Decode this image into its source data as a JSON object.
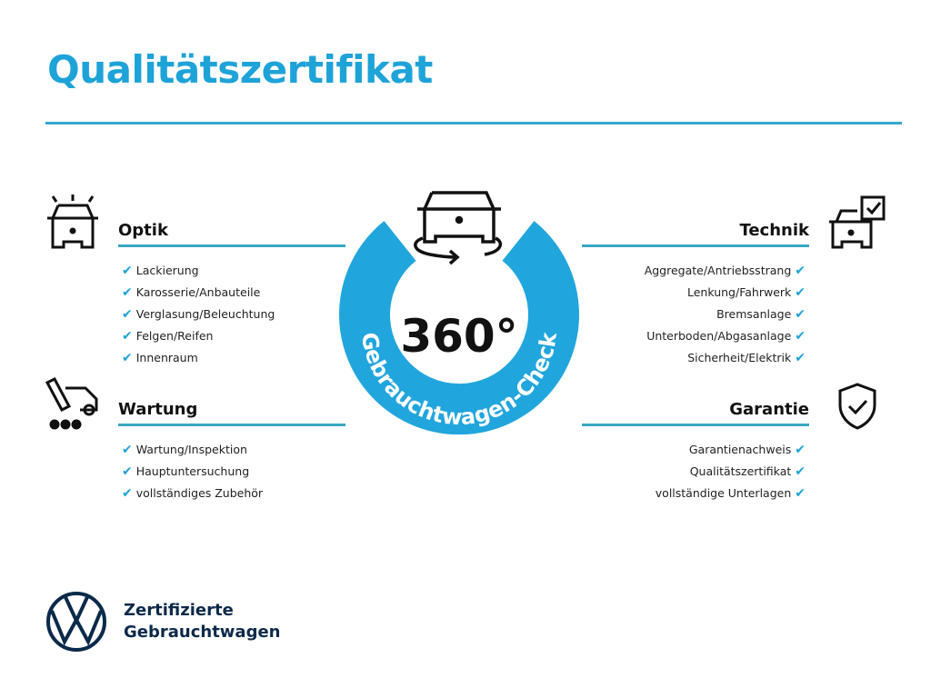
{
  "title": "Qualitätszertifikat",
  "center": {
    "number": "360°",
    "label": "Gebrauchtwagen-Check"
  },
  "sections": {
    "optik": {
      "heading": "Optik",
      "items": [
        "Lackierung",
        "Karosserie/Anbauteile",
        "Verglasung/Beleuchtung",
        "Felgen/Reifen",
        "Innenraum"
      ]
    },
    "wartung": {
      "heading": "Wartung",
      "items": [
        "Wartung/Inspektion",
        "Hauptuntersuchung",
        "vollständiges Zubehör"
      ]
    },
    "technik": {
      "heading": "Technik",
      "items": [
        "Aggregate/Antriebsstrang",
        "Lenkung/Fahrwerk",
        "Bremsanlage",
        "Unterboden/Abgasanlage",
        "Sicherheit/Elektrik"
      ]
    },
    "garantie": {
      "heading": "Garantie",
      "items": [
        "Garantienachweis",
        "Qualitätszertifikat",
        "vollständige Unterlagen"
      ]
    }
  },
  "footer": {
    "line1": "Zertifizierte",
    "line2": "Gebrauchtwagen"
  },
  "colors": {
    "accent": "#1ea3d8",
    "rule": "#33a9cc",
    "navy": "#0b2a4a"
  }
}
